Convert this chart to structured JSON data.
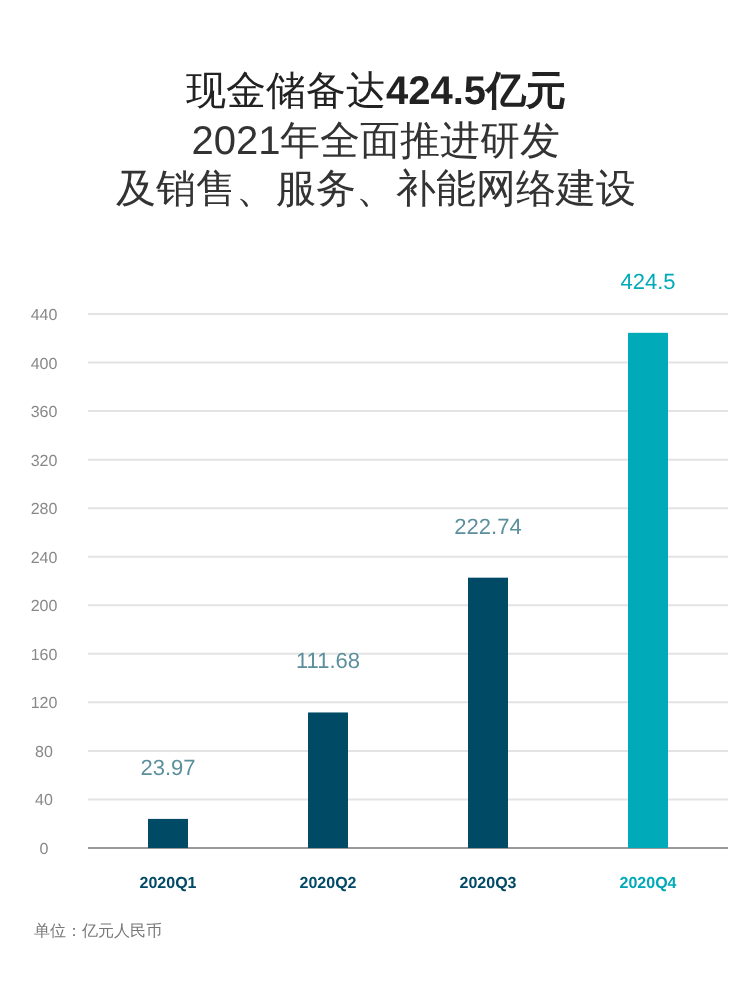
{
  "chart_data": {
    "type": "bar",
    "title": "现金储备达424.5亿元",
    "subtitle": "2021年全面推进研发及销售、服务、补能网络建设",
    "categories": [
      "2020Q1",
      "2020Q2",
      "2020Q3",
      "2020Q4"
    ],
    "values": [
      23.97,
      111.68,
      222.74,
      424.5
    ],
    "colors": [
      "#004a66",
      "#004a66",
      "#004a66",
      "#00aab9"
    ],
    "ylim": [
      0,
      440
    ],
    "yticks": [
      0,
      40,
      80,
      120,
      160,
      200,
      240,
      280,
      320,
      360,
      400,
      440
    ],
    "grid": "y",
    "data_labels": true,
    "annotations": [
      "单位：亿元人民币"
    ]
  }
}
